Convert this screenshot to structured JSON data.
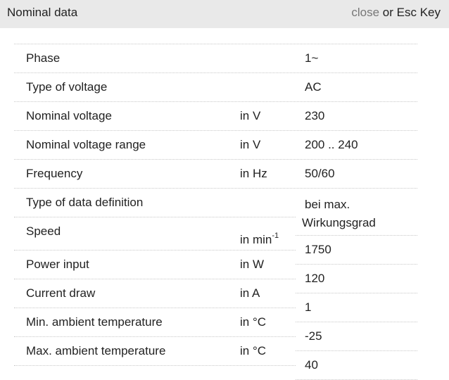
{
  "header": {
    "title": "Nominal data",
    "close": "close",
    "hint": "or Esc Key"
  },
  "table": {
    "rows": [
      {
        "label": "Phase",
        "value": "1~"
      },
      {
        "label": "Type of voltage",
        "value": "AC"
      },
      {
        "label": "Nominal voltage",
        "unit": "in V",
        "value": "230"
      },
      {
        "label": "Nominal voltage range",
        "unit": "in V",
        "value": "200 .. 240"
      },
      {
        "label": "Frequency",
        "unit": "in Hz",
        "value": "50/60"
      },
      {
        "label": "Type of data definition",
        "value": "bei max. Wirkungsgrad"
      },
      {
        "label": "Speed",
        "unit": "in min",
        "unit_superscript": "-1",
        "value": "1750"
      },
      {
        "label": "Power input",
        "unit": "in W",
        "value": "120"
      },
      {
        "label": "Current draw",
        "unit": "in A",
        "value": "1"
      },
      {
        "label": "Min. ambient temperature",
        "unit": "in °C",
        "value": "-25"
      },
      {
        "label": "Max. ambient temperature",
        "unit": "in °C",
        "value": "40"
      }
    ]
  }
}
